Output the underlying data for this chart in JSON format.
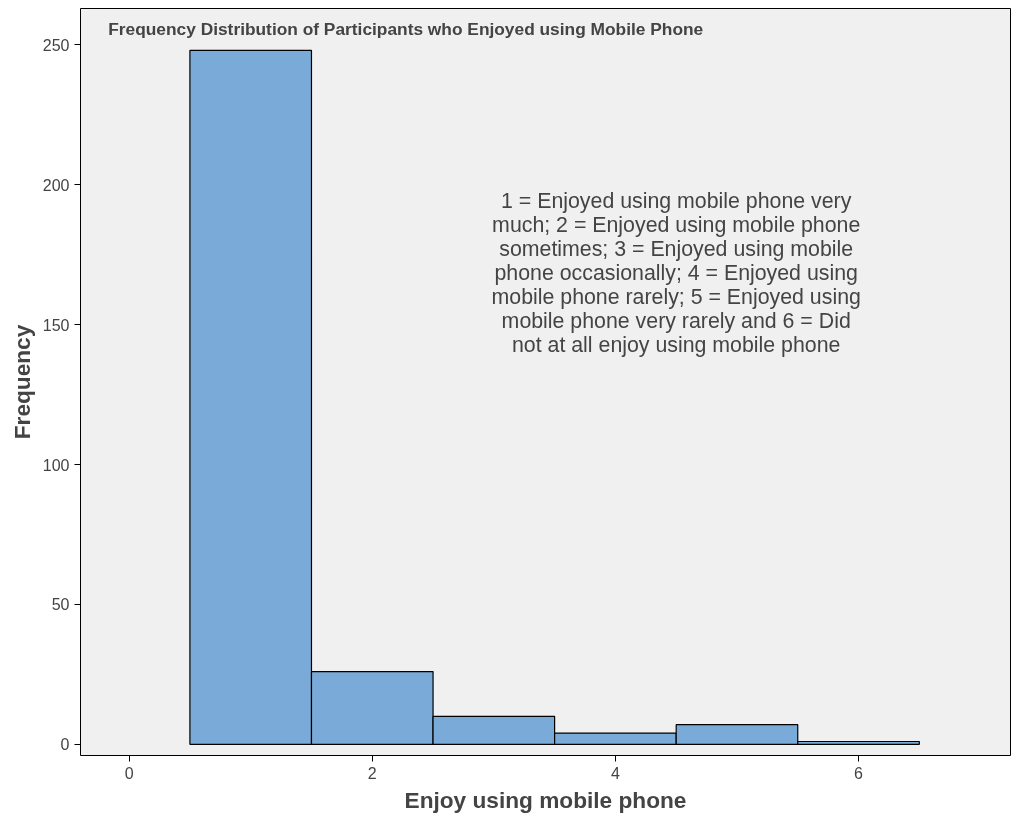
{
  "chart_data": {
    "type": "histogram",
    "title": "Frequency Distribution of Participants who Enjoyed using Mobile Phone",
    "xlabel": "Enjoy using mobile phone",
    "ylabel": "Frequency",
    "bins": [
      0.5,
      1.5,
      2.5,
      3.5,
      4.5,
      5.5,
      6.5
    ],
    "values": [
      248,
      26,
      10,
      4,
      7,
      1
    ],
    "color": "#7aabd8",
    "xlim": [
      -0.4,
      7.25
    ],
    "xticks": [
      0,
      2,
      4,
      6
    ],
    "ylim": [
      -4,
      263
    ],
    "yticks": [
      0,
      50,
      100,
      150,
      200,
      250
    ],
    "grid": false,
    "annotations": [
      "1 = Enjoyed using mobile phone very much; 2 = Enjoyed using mobile phone sometimes; 3 = Enjoyed using mobile phone occasionally; 4 = Enjoyed using mobile phone rarely; 5 = Enjoyed using mobile phone very rarely and 6 = Did not at all enjoy using mobile phone"
    ]
  }
}
